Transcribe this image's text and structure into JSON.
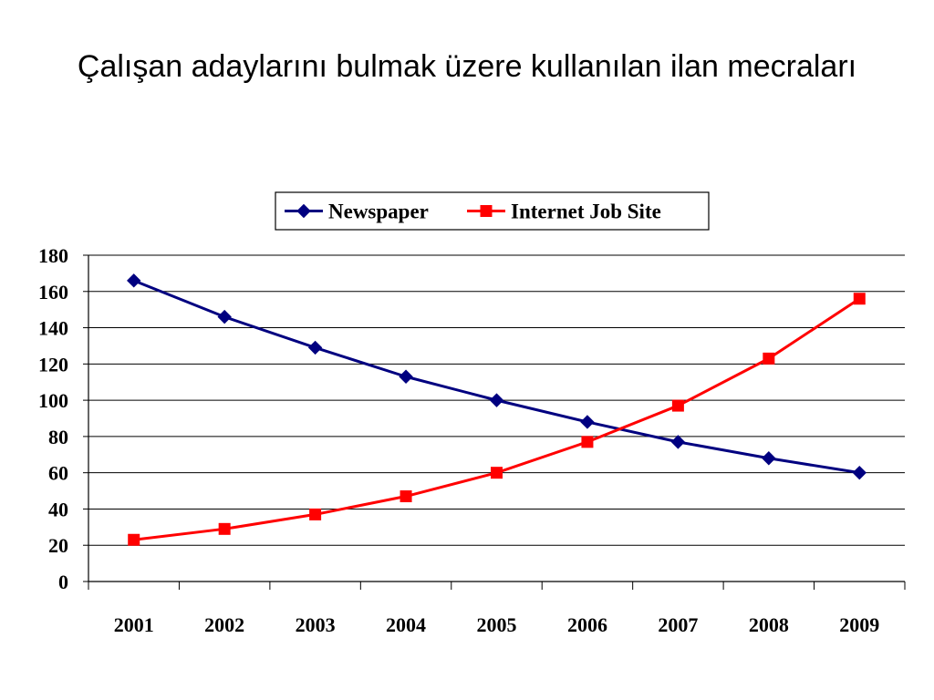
{
  "title": "Çalışan adaylarını bulmak üzere kullanılan ilan mecraları",
  "chart_data": {
    "type": "line",
    "title": "Çalışan adaylarını bulmak üzere kullanılan ilan mecraları",
    "xlabel": "",
    "ylabel": "",
    "categories": [
      "2001",
      "2002",
      "2003",
      "2004",
      "2005",
      "2006",
      "2007",
      "2008",
      "2009"
    ],
    "ylim": [
      0,
      180
    ],
    "yticks": [
      0,
      20,
      40,
      60,
      80,
      100,
      120,
      140,
      160,
      180
    ],
    "grid": true,
    "legend_position": "top-right",
    "series": [
      {
        "name": "Newspaper",
        "color": "#000080",
        "marker": "diamond",
        "values": [
          166,
          146,
          129,
          113,
          100,
          88,
          77,
          68,
          60
        ]
      },
      {
        "name": "Internet Job Site",
        "color": "#ff0000",
        "marker": "square",
        "values": [
          23,
          29,
          37,
          47,
          60,
          77,
          97,
          123,
          156
        ]
      }
    ]
  }
}
